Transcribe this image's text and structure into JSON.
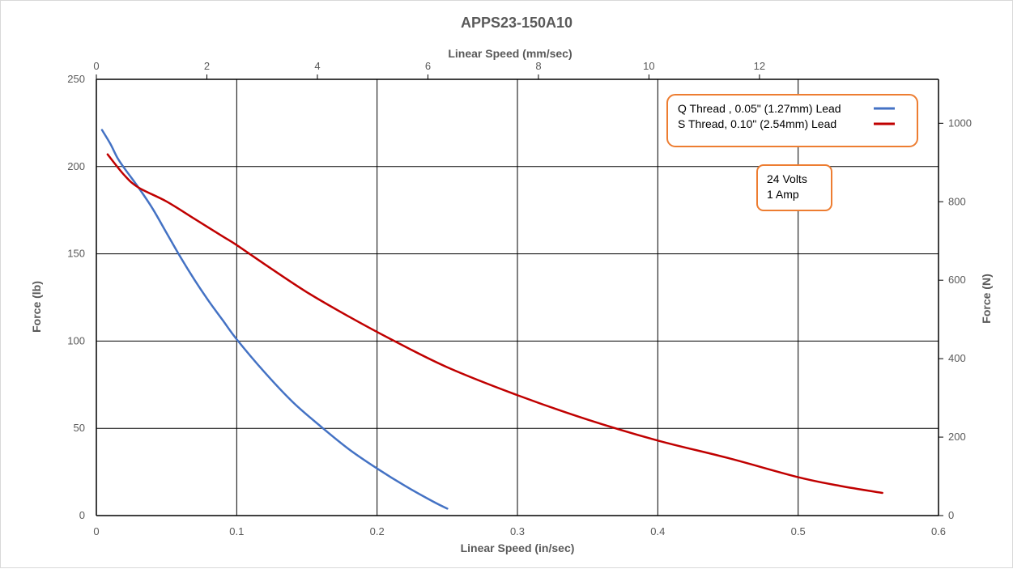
{
  "chart_data": {
    "type": "line",
    "title": "APPS23-150A10",
    "xlabel": "Linear Speed (in/sec)",
    "x2label": "Linear Speed (mm/sec)",
    "ylabel": "Force (lb)",
    "y2label": "Force (N)",
    "xlim": [
      0,
      0.6
    ],
    "ylim": [
      0,
      250
    ],
    "x2lim": [
      0,
      15.24
    ],
    "y2lim": [
      0,
      1112.06
    ],
    "x_ticks": [
      "0",
      "0.1",
      "0.2",
      "0.3",
      "0.4",
      "0.5",
      "0.6"
    ],
    "y_ticks": [
      "0",
      "50",
      "100",
      "150",
      "200",
      "250"
    ],
    "x2_ticks": [
      "0",
      "2",
      "4",
      "6",
      "8",
      "10",
      "12"
    ],
    "y2_ticks": [
      "0",
      "200",
      "400",
      "600",
      "800",
      "1000"
    ],
    "grid": true,
    "legend_position": "top-right",
    "series": [
      {
        "name": "Q Thread , 0.05\" (1.27mm) Lead",
        "color": "#4472c4",
        "x": [
          0.004,
          0.01,
          0.015,
          0.02,
          0.03,
          0.04,
          0.05,
          0.06,
          0.07,
          0.08,
          0.09,
          0.1,
          0.12,
          0.14,
          0.16,
          0.18,
          0.2,
          0.22,
          0.24,
          0.25
        ],
        "y": [
          221,
          213,
          205,
          199,
          188,
          176,
          162,
          148,
          135,
          123,
          112,
          101,
          82,
          65,
          51,
          38,
          27,
          17,
          8,
          4
        ]
      },
      {
        "name": "S Thread, 0.10\"  (2.54mm) Lead",
        "color": "#c00000",
        "x": [
          0.008,
          0.02,
          0.03,
          0.05,
          0.07,
          0.09,
          0.1,
          0.12,
          0.15,
          0.18,
          0.21,
          0.25,
          0.3,
          0.35,
          0.4,
          0.45,
          0.5,
          0.53,
          0.56
        ],
        "y": [
          207,
          195,
          188,
          180,
          170,
          160,
          155,
          144,
          128,
          114,
          101,
          85,
          69,
          55,
          43,
          33,
          22,
          17,
          13
        ]
      }
    ],
    "annotation": {
      "lines": [
        "24 Volts",
        "1 Amp"
      ]
    }
  }
}
